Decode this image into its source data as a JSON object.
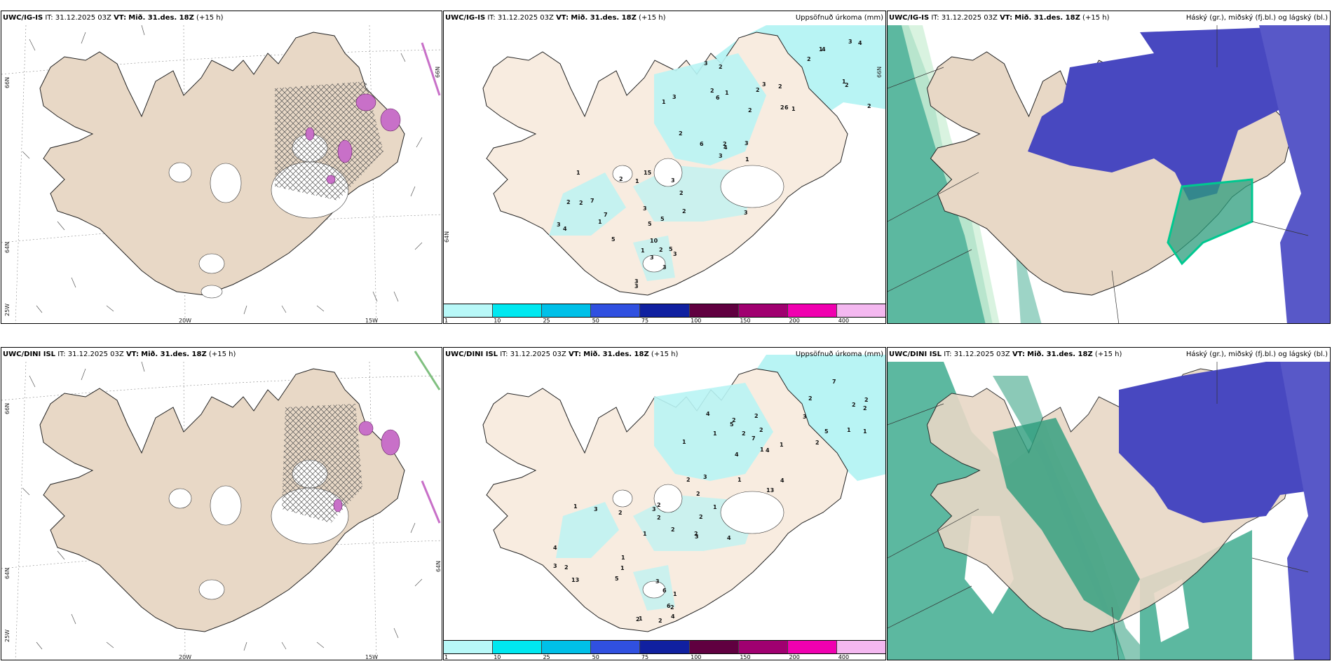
{
  "rows": [
    {
      "model": "UWC/IG-IS",
      "it": "IT: 31.12.2025 03Z",
      "vt_label": "VT:",
      "vt_value": "Mið. 31.des. 18Z",
      "lead": "(+15 h)"
    },
    {
      "model": "UWC/DINI ISL",
      "it": "IT: 31.12.2025 03Z",
      "vt_label": "VT:",
      "vt_value": "Mið. 31.des. 18Z",
      "lead": "(+15 h)"
    }
  ],
  "panel_titles": {
    "precip": "Uppsöfnuð úrkoma (mm)",
    "cloud": "Háský (gr.), miðský (fj.bl.) og lágský (bl.)"
  },
  "grid_labels": {
    "lat_66": "66N",
    "lat_64": "64N",
    "lon_25": "25W",
    "lon_20": "20W",
    "lon_15": "15W"
  },
  "colorbar": {
    "labels": [
      "1",
      "10",
      "25",
      "50",
      "75",
      "100",
      "150",
      "200",
      "400"
    ],
    "colors": [
      "#b8f8f8",
      "#00e8f0",
      "#00c0e8",
      "#3050e0",
      "#1020a0",
      "#600040",
      "#a00070",
      "#f000b0",
      "#f4b8f0"
    ]
  },
  "colors": {
    "land": "#e8d8c6",
    "land_light": "#f8ece0",
    "precip_cyan": "#b8f4f4",
    "high_cloud": "#4848c0",
    "mid_cloud": "#2c9c7c",
    "low_cloud_edge": "#00c890",
    "snow_pink": "#c060c0"
  },
  "precip_numbers_top": [
    "2",
    "1",
    "2",
    "2",
    "2",
    "3",
    "1",
    "2",
    "3",
    "3",
    "3",
    "4",
    "4",
    "6",
    "7",
    "15",
    "10",
    "2",
    "1",
    "2",
    "2",
    "2",
    "3",
    "1",
    "3",
    "2",
    "5",
    "3",
    "3",
    "1",
    "2",
    "3",
    "1",
    "5",
    "3",
    "2",
    "6",
    "6",
    "7",
    "3",
    "5",
    "2",
    "2",
    "2",
    "4",
    "5",
    "3",
    "3",
    "4",
    "3",
    "2",
    "1",
    "1",
    "3",
    "1",
    "2",
    "1"
  ],
  "precip_numbers_bottom": [
    "1",
    "2",
    "1",
    "2",
    "2",
    "2",
    "2",
    "2",
    "2",
    "2",
    "1",
    "1",
    "2",
    "2",
    "3",
    "3",
    "4",
    "5",
    "5",
    "7",
    "4",
    "1",
    "2",
    "1",
    "2",
    "3",
    "3",
    "1",
    "6",
    "4",
    "3",
    "1",
    "13",
    "2",
    "2",
    "13",
    "2",
    "4",
    "5",
    "2",
    "6",
    "4",
    "7",
    "1",
    "1",
    "4",
    "1",
    "2",
    "2",
    "2",
    "2",
    "3",
    "3",
    "1",
    "1",
    "4",
    "1",
    "2"
  ]
}
